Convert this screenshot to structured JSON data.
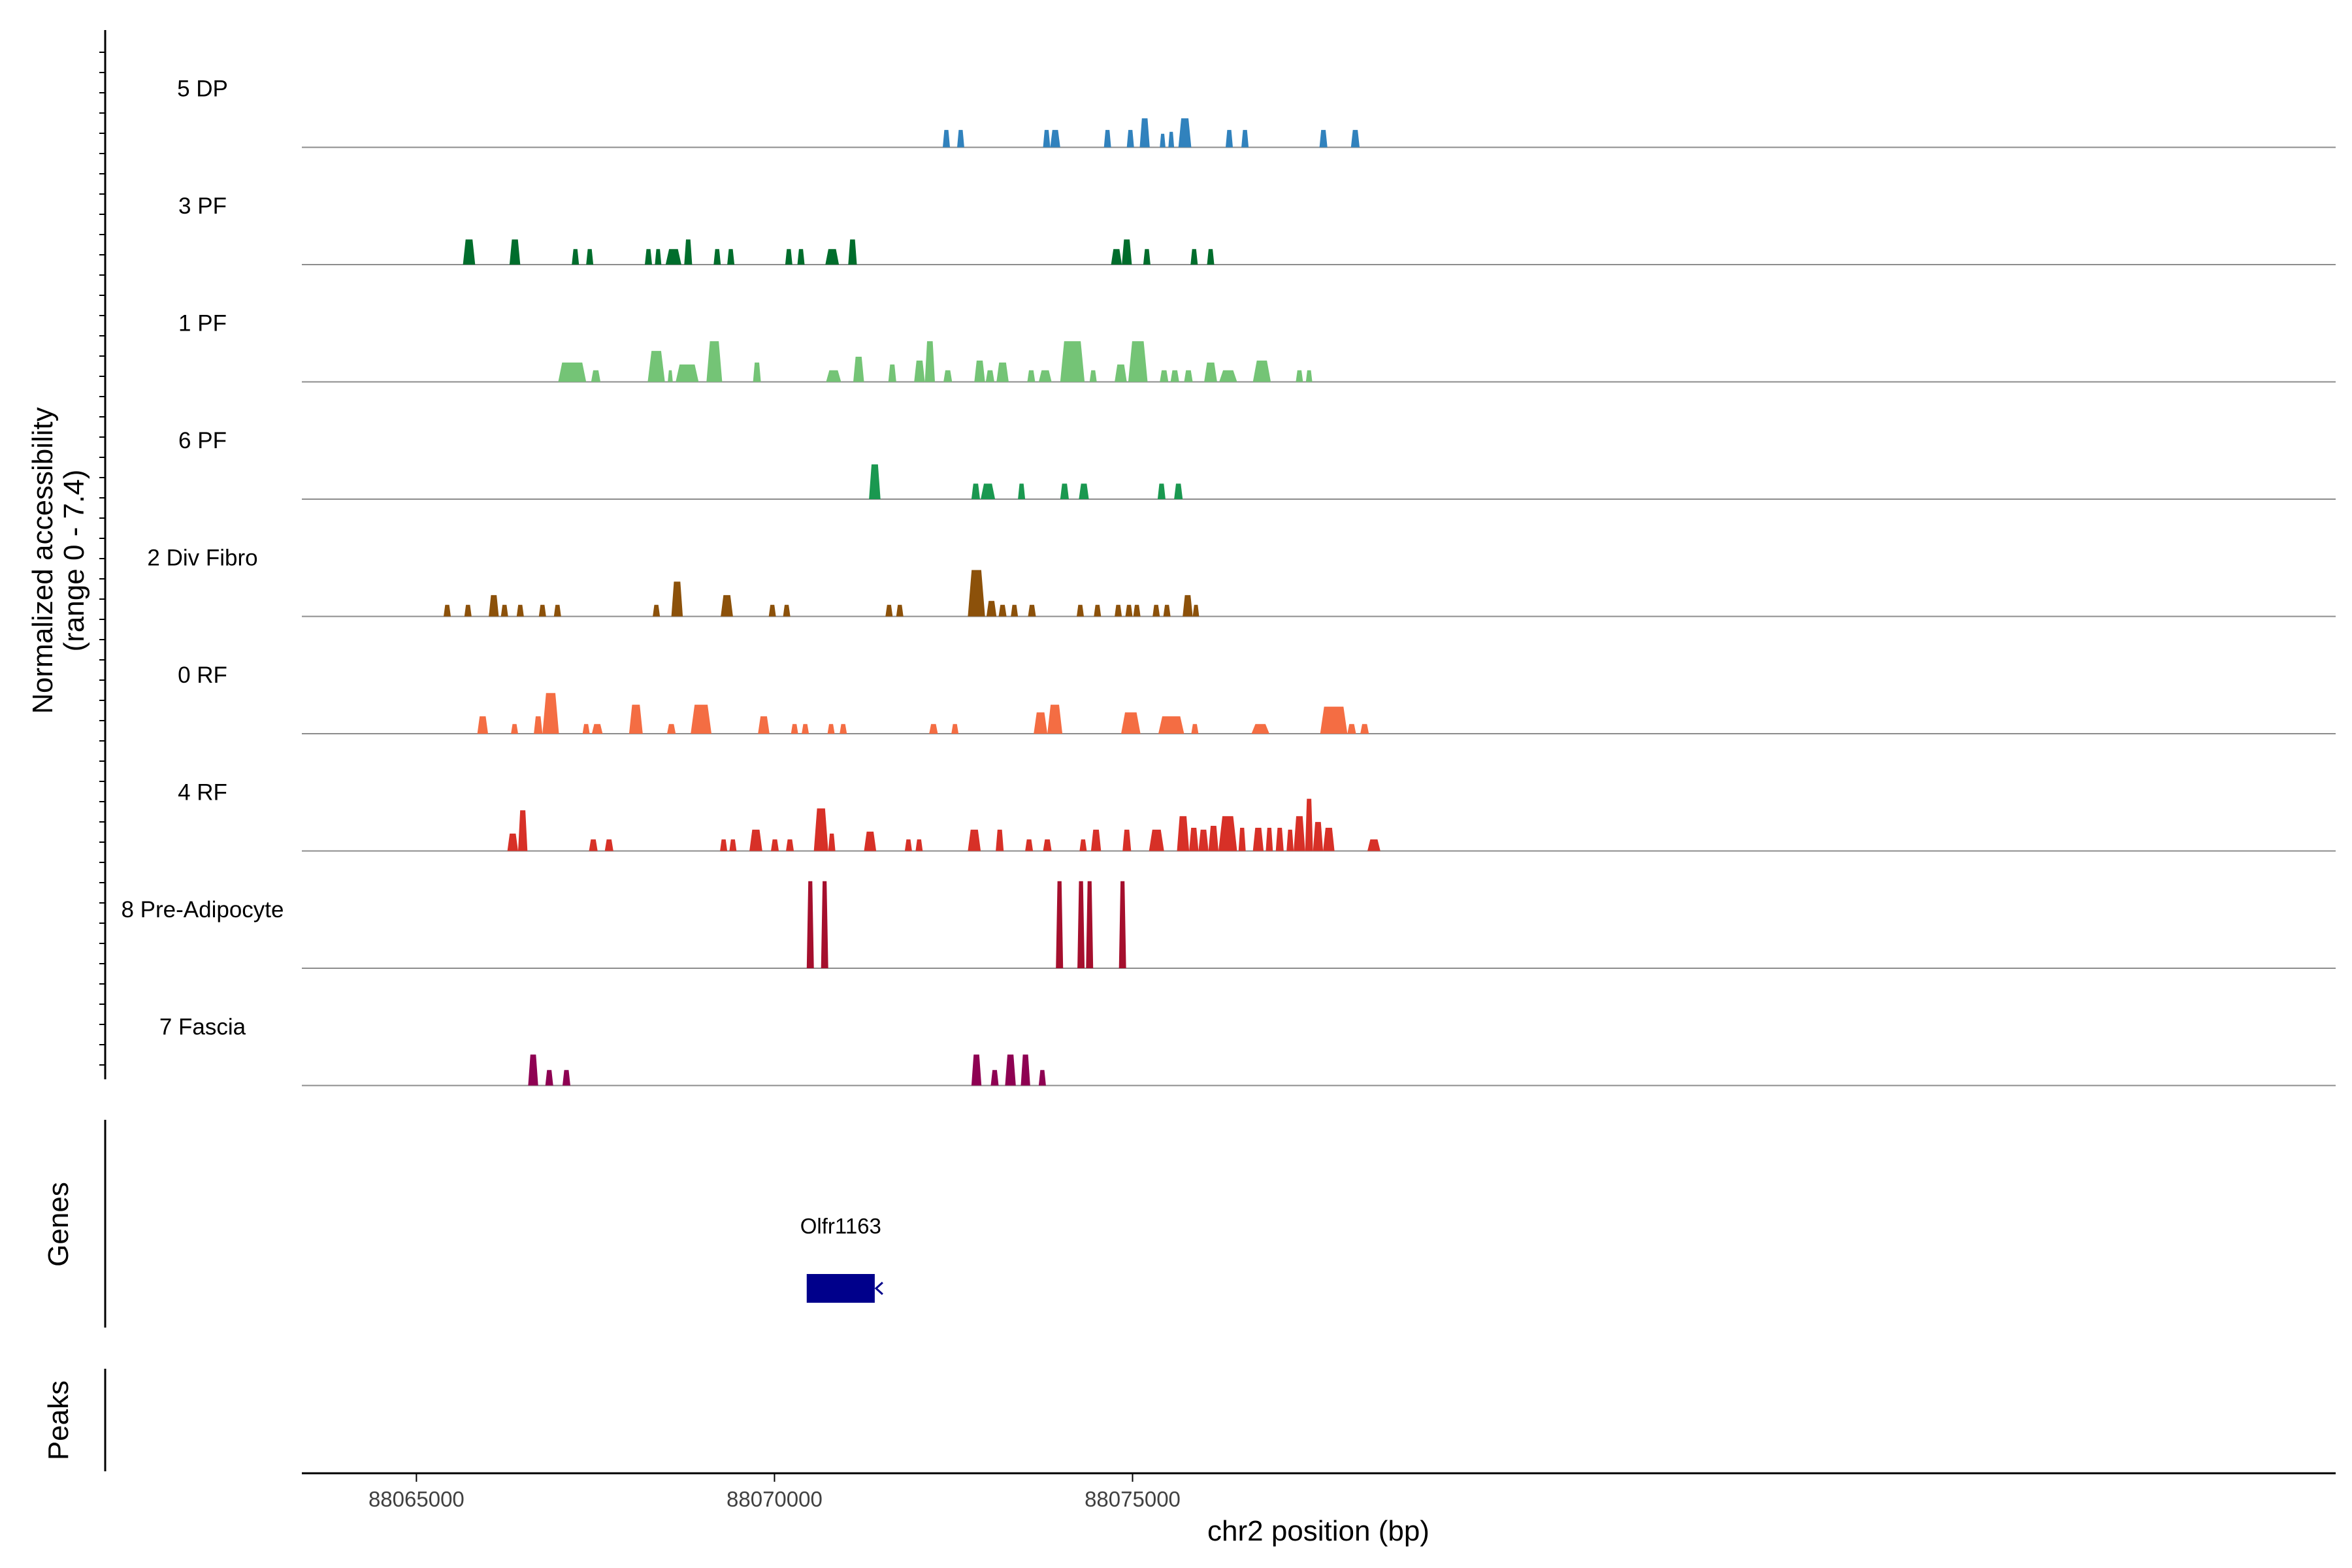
{
  "chart_data": {
    "type": "coverage",
    "ylabel_line1": "Normalized accessibility",
    "ylabel_line2": "(range 0 - 7.4)",
    "xlabel": "chr2 position (bp)",
    "xlim": [
      88063400,
      88091800
    ],
    "x_ticks": [
      88065000,
      88070000,
      88075000
    ],
    "x_tick_labels": [
      "88065000",
      "88070000",
      "88075000"
    ],
    "genes_label": "Genes",
    "peaks_label": "Peaks",
    "genes": [
      {
        "name": "Olfr1163",
        "start": 88070450,
        "end": 88071400,
        "strand": "-",
        "color": "#00008B"
      }
    ],
    "tracks": [
      {
        "name": "5 DP",
        "color": "#3182BD",
        "peaks": [
          [
            88072350,
            88072450,
            0.18
          ],
          [
            88072550,
            88072650,
            0.18
          ],
          [
            88073750,
            88073850,
            0.18
          ],
          [
            88073850,
            88073990,
            0.18
          ],
          [
            88074600,
            88074700,
            0.18
          ],
          [
            88074920,
            88075020,
            0.18
          ],
          [
            88075100,
            88075240,
            0.3
          ],
          [
            88075380,
            88075460,
            0.14
          ],
          [
            88075500,
            88075580,
            0.16
          ],
          [
            88075640,
            88075820,
            0.3
          ],
          [
            88076300,
            88076400,
            0.18
          ],
          [
            88076520,
            88076620,
            0.18
          ],
          [
            88077610,
            88077720,
            0.18
          ],
          [
            88078050,
            88078170,
            0.18
          ]
        ]
      },
      {
        "name": "3 PF",
        "color": "#006D2C",
        "peaks": [
          [
            88065650,
            88065820,
            0.26
          ],
          [
            88066300,
            88066450,
            0.26
          ],
          [
            88067170,
            88067270,
            0.16
          ],
          [
            88067370,
            88067470,
            0.16
          ],
          [
            88068190,
            88068290,
            0.16
          ],
          [
            88068330,
            88068420,
            0.16
          ],
          [
            88068480,
            88068700,
            0.16
          ],
          [
            88068740,
            88068850,
            0.26
          ],
          [
            88069150,
            88069250,
            0.16
          ],
          [
            88069340,
            88069440,
            0.16
          ],
          [
            88070150,
            88070250,
            0.16
          ],
          [
            88070320,
            88070420,
            0.16
          ],
          [
            88070710,
            88070900,
            0.16
          ],
          [
            88071030,
            88071150,
            0.26
          ],
          [
            88074700,
            88074850,
            0.16
          ],
          [
            88074850,
            88074990,
            0.26
          ],
          [
            88075150,
            88075250,
            0.16
          ],
          [
            88075810,
            88075910,
            0.16
          ],
          [
            88076040,
            88076140,
            0.16
          ]
        ]
      },
      {
        "name": "1 PF",
        "color": "#74C476",
        "peaks": [
          [
            88066980,
            88067370,
            0.2
          ],
          [
            88067440,
            88067570,
            0.12
          ],
          [
            88068230,
            88068470,
            0.32
          ],
          [
            88068510,
            88068580,
            0.12
          ],
          [
            88068620,
            88068940,
            0.18
          ],
          [
            88069050,
            88069270,
            0.42
          ],
          [
            88069700,
            88069810,
            0.2
          ],
          [
            88070720,
            88070930,
            0.12
          ],
          [
            88071100,
            88071250,
            0.26
          ],
          [
            88071590,
            88071700,
            0.18
          ],
          [
            88071950,
            88072100,
            0.22
          ],
          [
            88072100,
            88072240,
            0.42
          ],
          [
            88072360,
            88072480,
            0.12
          ],
          [
            88072790,
            88072940,
            0.22
          ],
          [
            88072950,
            88073070,
            0.12
          ],
          [
            88073100,
            88073270,
            0.2
          ],
          [
            88073530,
            88073640,
            0.12
          ],
          [
            88073690,
            88073870,
            0.12
          ],
          [
            88073990,
            88074330,
            0.42
          ],
          [
            88074400,
            88074500,
            0.12
          ],
          [
            88074750,
            88074920,
            0.18
          ],
          [
            88074940,
            88075210,
            0.42
          ],
          [
            88075380,
            88075500,
            0.12
          ],
          [
            88075530,
            88075650,
            0.12
          ],
          [
            88075720,
            88075840,
            0.12
          ],
          [
            88076000,
            88076180,
            0.2
          ],
          [
            88076210,
            88076460,
            0.12
          ],
          [
            88076680,
            88076930,
            0.22
          ],
          [
            88077280,
            88077380,
            0.12
          ],
          [
            88077420,
            88077510,
            0.12
          ]
        ]
      },
      {
        "name": "6 PF",
        "color": "#1A9850",
        "peaks": [
          [
            88071320,
            88071480,
            0.36
          ],
          [
            88072750,
            88072870,
            0.16
          ],
          [
            88072880,
            88073080,
            0.16
          ],
          [
            88073400,
            88073500,
            0.16
          ],
          [
            88073990,
            88074110,
            0.16
          ],
          [
            88074250,
            88074390,
            0.16
          ],
          [
            88075350,
            88075460,
            0.16
          ],
          [
            88075580,
            88075700,
            0.16
          ]
        ]
      },
      {
        "name": "2 Div Fibro",
        "color": "#8C510A",
        "peaks": [
          [
            88065380,
            88065480,
            0.12
          ],
          [
            88065670,
            88065770,
            0.12
          ],
          [
            88066010,
            88066150,
            0.22
          ],
          [
            88066180,
            88066280,
            0.12
          ],
          [
            88066400,
            88066500,
            0.12
          ],
          [
            88066710,
            88066810,
            0.12
          ],
          [
            88066920,
            88067020,
            0.12
          ],
          [
            88068300,
            88068400,
            0.12
          ],
          [
            88068560,
            88068720,
            0.36
          ],
          [
            88069250,
            88069420,
            0.22
          ],
          [
            88069920,
            88070020,
            0.12
          ],
          [
            88070120,
            88070220,
            0.12
          ],
          [
            88071550,
            88071650,
            0.12
          ],
          [
            88071700,
            88071800,
            0.12
          ],
          [
            88072700,
            88072940,
            0.48
          ],
          [
            88072960,
            88073100,
            0.16
          ],
          [
            88073130,
            88073240,
            0.12
          ],
          [
            88073300,
            88073400,
            0.12
          ],
          [
            88073540,
            88073650,
            0.12
          ],
          [
            88074220,
            88074320,
            0.12
          ],
          [
            88074460,
            88074560,
            0.12
          ],
          [
            88074750,
            88074850,
            0.12
          ],
          [
            88074900,
            88075000,
            0.12
          ],
          [
            88075010,
            88075110,
            0.12
          ],
          [
            88075280,
            88075380,
            0.12
          ],
          [
            88075430,
            88075530,
            0.12
          ],
          [
            88075700,
            88075840,
            0.22
          ],
          [
            88075840,
            88075930,
            0.12
          ]
        ]
      },
      {
        "name": "0 RF",
        "color": "#F46D43",
        "peaks": [
          [
            88065850,
            88066000,
            0.18
          ],
          [
            88066320,
            88066420,
            0.1
          ],
          [
            88066640,
            88066760,
            0.18
          ],
          [
            88066760,
            88066990,
            0.42
          ],
          [
            88067320,
            88067420,
            0.1
          ],
          [
            88067450,
            88067600,
            0.1
          ],
          [
            88067970,
            88068160,
            0.3
          ],
          [
            88068500,
            88068620,
            0.1
          ],
          [
            88068830,
            88069120,
            0.3
          ],
          [
            88069770,
            88069930,
            0.18
          ],
          [
            88070230,
            88070330,
            0.1
          ],
          [
            88070380,
            88070480,
            0.1
          ],
          [
            88070740,
            88070840,
            0.1
          ],
          [
            88070910,
            88071010,
            0.1
          ],
          [
            88072160,
            88072280,
            0.1
          ],
          [
            88072470,
            88072570,
            0.1
          ],
          [
            88073620,
            88073810,
            0.22
          ],
          [
            88073810,
            88074020,
            0.3
          ],
          [
            88074840,
            88075110,
            0.22
          ],
          [
            88075360,
            88075720,
            0.18
          ],
          [
            88075820,
            88075920,
            0.1
          ],
          [
            88076660,
            88076910,
            0.1
          ],
          [
            88077620,
            88078000,
            0.28
          ],
          [
            88078000,
            88078120,
            0.1
          ],
          [
            88078180,
            88078300,
            0.1
          ]
        ]
      },
      {
        "name": "4 RF",
        "color": "#D73027",
        "peaks": [
          [
            88066270,
            88066420,
            0.18
          ],
          [
            88066420,
            88066550,
            0.42
          ],
          [
            88067410,
            88067530,
            0.12
          ],
          [
            88067630,
            88067750,
            0.12
          ],
          [
            88069240,
            88069340,
            0.12
          ],
          [
            88069370,
            88069470,
            0.12
          ],
          [
            88069650,
            88069830,
            0.22
          ],
          [
            88069950,
            88070060,
            0.12
          ],
          [
            88070160,
            88070270,
            0.12
          ],
          [
            88070550,
            88070750,
            0.44
          ],
          [
            88070750,
            88070850,
            0.18
          ],
          [
            88071250,
            88071420,
            0.2
          ],
          [
            88071820,
            88071920,
            0.12
          ],
          [
            88071970,
            88072070,
            0.12
          ],
          [
            88072700,
            88072880,
            0.22
          ],
          [
            88073090,
            88073200,
            0.22
          ],
          [
            88073500,
            88073610,
            0.12
          ],
          [
            88073750,
            88073870,
            0.12
          ],
          [
            88074260,
            88074360,
            0.12
          ],
          [
            88074420,
            88074560,
            0.22
          ],
          [
            88074860,
            88074980,
            0.22
          ],
          [
            88075230,
            88075440,
            0.22
          ],
          [
            88075620,
            88075790,
            0.36
          ],
          [
            88075790,
            88075920,
            0.24
          ],
          [
            88075920,
            88076060,
            0.22
          ],
          [
            88076060,
            88076200,
            0.26
          ],
          [
            88076200,
            88076460,
            0.36
          ],
          [
            88076480,
            88076580,
            0.24
          ],
          [
            88076680,
            88076830,
            0.24
          ],
          [
            88076860,
            88076960,
            0.24
          ],
          [
            88077000,
            88077110,
            0.24
          ],
          [
            88077150,
            88077250,
            0.22
          ],
          [
            88077250,
            88077410,
            0.36
          ],
          [
            88077410,
            88077520,
            0.54
          ],
          [
            88077520,
            88077660,
            0.3
          ],
          [
            88077660,
            88077820,
            0.24
          ],
          [
            88078280,
            88078460,
            0.12
          ]
        ]
      },
      {
        "name": "8 Pre-Adipocyte",
        "color": "#A50F2D",
        "peaks": [
          [
            88070450,
            88070550,
            0.9
          ],
          [
            88070650,
            88070750,
            0.9
          ],
          [
            88073930,
            88074030,
            0.9
          ],
          [
            88074230,
            88074330,
            0.9
          ],
          [
            88074350,
            88074450,
            0.9
          ],
          [
            88074810,
            88074910,
            0.9
          ]
        ]
      },
      {
        "name": "7 Fascia",
        "color": "#8E0152",
        "peaks": [
          [
            88066560,
            88066700,
            0.32
          ],
          [
            88066800,
            88066910,
            0.16
          ],
          [
            88067040,
            88067150,
            0.16
          ],
          [
            88072750,
            88072890,
            0.32
          ],
          [
            88073020,
            88073130,
            0.16
          ],
          [
            88073220,
            88073370,
            0.32
          ],
          [
            88073440,
            88073570,
            0.32
          ],
          [
            88073690,
            88073790,
            0.16
          ]
        ]
      }
    ]
  }
}
